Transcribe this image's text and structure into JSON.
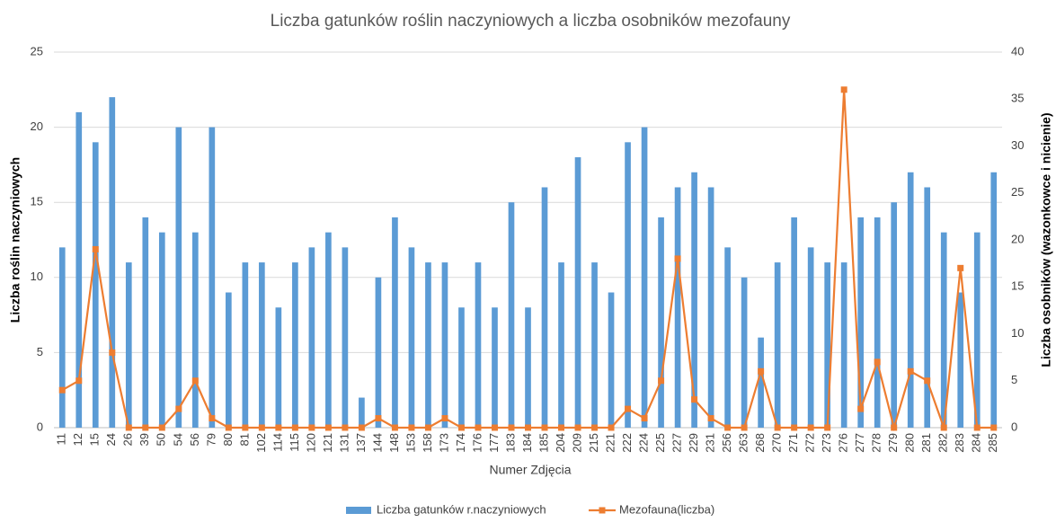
{
  "chart_data": {
    "type": "bar_line",
    "title": "Liczba gatunków roślin naczyniowych a liczba osobników mezofauny",
    "x_label": "Numer Zdjęcia",
    "y_label": "Liczba roślin naczyniowych",
    "y2_label": "Liczba osobników  (wazonkowce i nicienie)",
    "categories": [
      "11",
      "12",
      "15",
      "24",
      "26",
      "39",
      "50",
      "54",
      "56",
      "79",
      "80",
      "81",
      "102",
      "114",
      "115",
      "120",
      "121",
      "131",
      "137",
      "144",
      "148",
      "153",
      "158",
      "173",
      "174",
      "176",
      "177",
      "183",
      "184",
      "185",
      "204",
      "209",
      "215",
      "221",
      "222",
      "224",
      "225",
      "227",
      "229",
      "231",
      "256",
      "263",
      "268",
      "270",
      "271",
      "272",
      "273",
      "276",
      "277",
      "278",
      "279",
      "280",
      "281",
      "282",
      "283",
      "284",
      "285"
    ],
    "series": [
      {
        "name": "Liczba gatunków r.naczyniowych",
        "type": "bar",
        "color": "#5b9bd5",
        "values": [
          12,
          21,
          19,
          22,
          11,
          14,
          13,
          20,
          13,
          20,
          9,
          11,
          11,
          8,
          11,
          12,
          13,
          12,
          2,
          10,
          14,
          12,
          11,
          11,
          8,
          11,
          8,
          15,
          8,
          16,
          11,
          18,
          11,
          9,
          19,
          20,
          14,
          16,
          17,
          16,
          12,
          10,
          6,
          11,
          14,
          12,
          11,
          11,
          14,
          14,
          15,
          17,
          16,
          13,
          9,
          13,
          17
        ]
      },
      {
        "name": "Mezofauna(liczba)",
        "type": "line",
        "axis": "y2",
        "color": "#ed7d31",
        "values": [
          4,
          5,
          19,
          8,
          0,
          0,
          0,
          2,
          5,
          1,
          0,
          0,
          0,
          0,
          0,
          0,
          0,
          0,
          0,
          1,
          0,
          0,
          0,
          1,
          0,
          0,
          0,
          0,
          0,
          0,
          0,
          0,
          0,
          0,
          2,
          1,
          5,
          18,
          3,
          1,
          0,
          0,
          6,
          0,
          0,
          0,
          0,
          36,
          2,
          7,
          0,
          6,
          5,
          0,
          17,
          0,
          0
        ]
      }
    ],
    "ylim": [
      0,
      25
    ],
    "yticks": [
      0,
      5,
      10,
      15,
      20,
      25
    ],
    "y2lim": [
      0,
      40
    ],
    "y2ticks": [
      0,
      5,
      10,
      15,
      20,
      25,
      30,
      35,
      40
    ],
    "grid": true,
    "legend": "bottom"
  }
}
